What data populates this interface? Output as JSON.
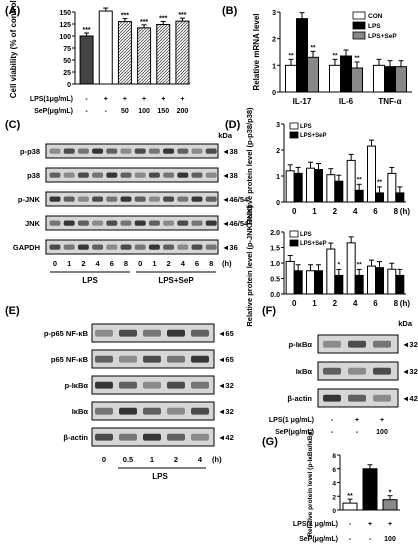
{
  "panels": {
    "A": {
      "label": "(A)"
    },
    "B": {
      "label": "(B)"
    },
    "C": {
      "label": "(C)"
    },
    "D": {
      "label": "(D)"
    },
    "E": {
      "label": "(E)"
    },
    "F": {
      "label": "(F)"
    },
    "G": {
      "label": "(G)"
    }
  },
  "chart_data": [
    {
      "id": "A",
      "type": "bar",
      "ylabel": "Cell viability (% of control)",
      "ylim": [
        0,
        150
      ],
      "yticks": [
        "0",
        "25",
        "50",
        "75",
        "100",
        "125",
        "150"
      ],
      "treatments": {
        "row1_label": "LPS(1μg/mL)",
        "row1": [
          "-",
          "+",
          "+",
          "+",
          "+",
          "+"
        ],
        "row2_label": "SeP(μg/mL)",
        "row2": [
          "-",
          "-",
          "50",
          "100",
          "150",
          "200"
        ]
      },
      "values": [
        100,
        152,
        130,
        117,
        124,
        131
      ],
      "annotations": [
        "***",
        "",
        "***",
        "***",
        "***",
        "***"
      ]
    },
    {
      "id": "B",
      "type": "bar",
      "ylabel": "Relative mRNA level",
      "ylim": [
        0,
        3
      ],
      "yticks": [
        "0",
        "1",
        "2",
        "3"
      ],
      "categories": [
        "IL-17",
        "IL-6",
        "TNF-α"
      ],
      "series": [
        {
          "name": "CON",
          "values": [
            1.0,
            1.0,
            1.0
          ],
          "color": "#ffffff"
        },
        {
          "name": "LPS",
          "values": [
            2.75,
            1.35,
            0.95
          ],
          "color": "#000000"
        },
        {
          "name": "LPS+SeP",
          "values": [
            1.3,
            0.9,
            0.95
          ],
          "color": "#888888"
        }
      ],
      "annotations": [
        [
          "**",
          "",
          "**"
        ],
        [
          "**",
          "",
          "**"
        ],
        [
          "",
          "",
          ""
        ]
      ]
    },
    {
      "id": "D1",
      "type": "bar",
      "ylabel": "Relative protein level (p-p38/p38)",
      "ylim": [
        0,
        3
      ],
      "yticks": [
        "0",
        "1",
        "2",
        "3"
      ],
      "categories": [
        "0",
        "1",
        "2",
        "4",
        "6",
        "8"
      ],
      "xunit": "(h)",
      "series": [
        {
          "name": "LPS",
          "values": [
            1.2,
            1.3,
            1.05,
            1.6,
            2.15,
            1.1
          ],
          "color": "#ffffff"
        },
        {
          "name": "LPS+SeP",
          "values": [
            1.1,
            1.25,
            0.8,
            0.45,
            0.35,
            0.35
          ],
          "color": "#000000"
        }
      ],
      "annotations": [
        "",
        "",
        "",
        "**",
        "**",
        ""
      ]
    },
    {
      "id": "D2",
      "type": "bar",
      "ylabel": "Relative protein level (p-JNK/JNK)",
      "ylim": [
        0,
        2
      ],
      "yticks": [
        "0.0",
        "0.5",
        "1.0",
        "1.5",
        "2.0"
      ],
      "categories": [
        "0",
        "1",
        "2",
        "4",
        "6",
        "8"
      ],
      "xunit": "(h)",
      "series": [
        {
          "name": "LPS",
          "values": [
            1.05,
            0.75,
            1.45,
            1.65,
            0.9,
            0.8
          ],
          "color": "#ffffff"
        },
        {
          "name": "LPS+SeP",
          "values": [
            0.75,
            0.75,
            0.6,
            0.6,
            0.85,
            0.6
          ],
          "color": "#000000"
        }
      ],
      "annotations": [
        "",
        "",
        "*",
        "**",
        "",
        ""
      ]
    },
    {
      "id": "G",
      "type": "bar",
      "ylabel": "Relative protein level (p-IκBα/IκBα)",
      "ylim": [
        0,
        8
      ],
      "yticks": [
        "0",
        "2",
        "4",
        "6",
        "8"
      ],
      "treatments": {
        "row1_label": "LPS(1 μg/mL)",
        "row1": [
          "-",
          "+",
          "+"
        ],
        "row2_label": "SeP(μg/mL)",
        "row2": [
          "-",
          "-",
          "100"
        ]
      },
      "values": [
        1.0,
        6.0,
        1.5
      ],
      "colors": [
        "#ffffff",
        "#000000",
        "#888888"
      ],
      "annotations": [
        "**",
        "",
        "*"
      ]
    }
  ],
  "blotC": {
    "kda": "kDa",
    "rows": [
      {
        "name": "p-p38",
        "size": "◄38"
      },
      {
        "name": "p38",
        "size": "◄38"
      },
      {
        "name": "p-JNK",
        "size": "◄46/54"
      },
      {
        "name": "JNK",
        "size": "◄46/54"
      },
      {
        "name": "GAPDH",
        "size": "◄36"
      }
    ],
    "lanes": [
      "0",
      "1",
      "2",
      "4",
      "6",
      "8",
      "0",
      "1",
      "2",
      "4",
      "6",
      "8"
    ],
    "unit": "(h)",
    "groups": [
      "LPS",
      "LPS+SeP"
    ]
  },
  "blotE": {
    "rows": [
      {
        "name": "p-p65 NF-κB",
        "size": "◄65"
      },
      {
        "name": "p65 NF-κB",
        "size": "◄65"
      },
      {
        "name": "p-IκBα",
        "size": "◄32"
      },
      {
        "name": "IκBα",
        "size": "◄32"
      },
      {
        "name": "β-actin",
        "size": "◄42"
      }
    ],
    "lanes": [
      "0",
      "0.5",
      "1",
      "2",
      "4"
    ],
    "unit": "(h)",
    "group": "LPS"
  },
  "blotF": {
    "kda": "kDa",
    "rows": [
      {
        "name": "p-IκBα",
        "size": "◄32"
      },
      {
        "name": "IκBα",
        "size": "◄32"
      },
      {
        "name": "β-actin",
        "size": "◄42"
      }
    ],
    "treat": {
      "row1_label": "LPS(1 μg/mL)",
      "row1": [
        "-",
        "+",
        "+"
      ],
      "row2_label": "SeP(μg/mL)",
      "row2": [
        "-",
        "-",
        "100"
      ]
    }
  }
}
